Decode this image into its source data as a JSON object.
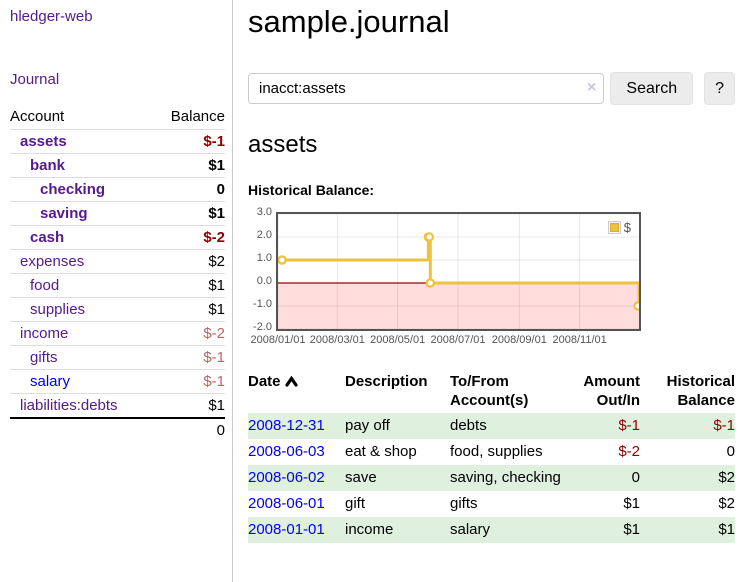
{
  "app_title": "hledger-web",
  "colors": {
    "link_visited": "#551a8b",
    "link_unvisited": "#0000ee",
    "negative_strong": "#8e0000",
    "negative_soft": "#bb6666",
    "row_stripe": "#dff0df",
    "chart_line": "#edc240",
    "zero_line": "#990000",
    "negative_region": "#ffdddd",
    "chart_border": "#545454"
  },
  "sidebar": {
    "journal_link": "Journal",
    "accounts": {
      "header_account": "Account",
      "header_balance": "Balance",
      "rows": [
        {
          "name": "assets",
          "balance": "$-1"
        },
        {
          "name": "bank",
          "balance": "$1"
        },
        {
          "name": "checking",
          "balance": "0"
        },
        {
          "name": "saving",
          "balance": "$1"
        },
        {
          "name": "cash",
          "balance": "$-2"
        },
        {
          "name": "expenses",
          "balance": "$2"
        },
        {
          "name": "food",
          "balance": "$1"
        },
        {
          "name": "supplies",
          "balance": "$1"
        },
        {
          "name": "income",
          "balance": "$-2"
        },
        {
          "name": "gifts",
          "balance": "$-1"
        },
        {
          "name": "salary",
          "balance": "$-1"
        },
        {
          "name": "liabilities:debts",
          "balance": "$1"
        }
      ],
      "total": "0"
    }
  },
  "main": {
    "title": "sample.journal",
    "search": {
      "query": "inacct:assets",
      "clear": "×",
      "button": "Search",
      "help": "?"
    },
    "heading": "assets",
    "chart_title": "Historical Balance:",
    "register": {
      "headers": [
        "Date",
        "Description",
        "To/From Account(s)",
        "Amount Out/In",
        "Historical Balance"
      ],
      "rows": [
        {
          "date": "2008-12-31",
          "description": "pay off",
          "accounts": "debts",
          "amount": "$-1",
          "balance": "$-1"
        },
        {
          "date": "2008-06-03",
          "description": "eat & shop",
          "accounts": "food, supplies",
          "amount": "$-2",
          "balance": "0"
        },
        {
          "date": "2008-06-02",
          "description": "save",
          "accounts": "saving, checking",
          "amount": "0",
          "balance": "$2"
        },
        {
          "date": "2008-06-01",
          "description": "gift",
          "accounts": "gifts",
          "amount": "$1",
          "balance": "$2"
        },
        {
          "date": "2008-01-01",
          "description": "income",
          "accounts": "salary",
          "amount": "$1",
          "balance": "$1"
        }
      ]
    }
  },
  "chart_data": {
    "type": "line",
    "step": true,
    "title": "Historical Balance:",
    "series": [
      {
        "name": "$",
        "color": "#edc240",
        "points": [
          [
            "2008-01-01",
            1
          ],
          [
            "2008-06-01",
            2
          ],
          [
            "2008-06-02",
            2
          ],
          [
            "2008-06-03",
            0
          ],
          [
            "2008-12-31",
            -1
          ]
        ]
      }
    ],
    "xlim": [
      "2008-01-01",
      "2008-12-31"
    ],
    "ylim": [
      -2,
      3
    ],
    "x_ticks": [
      "2008/01/01",
      "2008/03/01",
      "2008/05/01",
      "2008/07/01",
      "2008/09/01",
      "2008/11/01"
    ],
    "y_ticks": [
      3.0,
      2.0,
      1.0,
      0.0,
      -1.0,
      -2.0
    ],
    "y_tick_labels": [
      "3.0",
      "2.0",
      "1.0",
      "0.0",
      "-1.0",
      "-2.0"
    ],
    "grid": true,
    "legend_position": "top-right",
    "negative_region_shaded": true
  }
}
